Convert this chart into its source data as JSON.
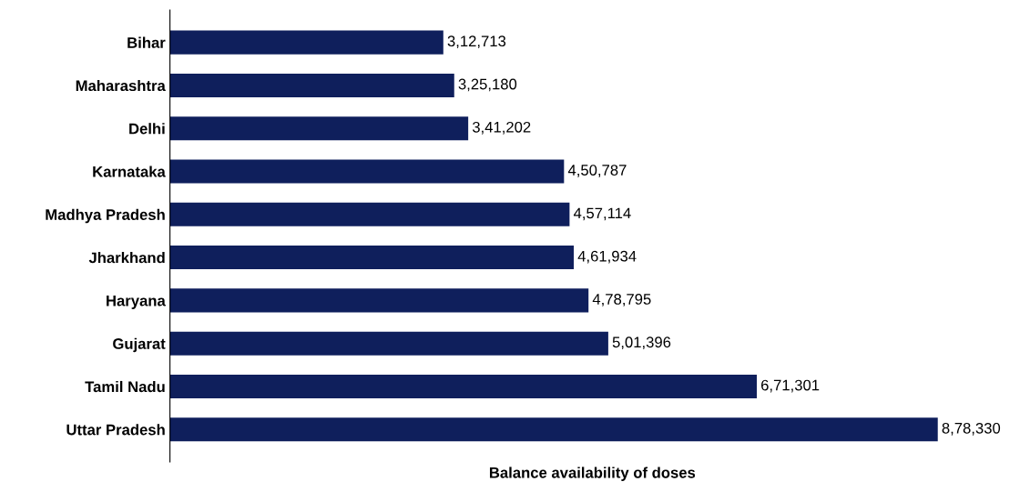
{
  "chart_data": {
    "type": "bar",
    "orientation": "horizontal",
    "xlabel": "Balance availability of doses",
    "categories": [
      "Bihar",
      "Maharashtra",
      "Delhi",
      "Karnataka",
      "Madhya Pradesh",
      "Jharkhand",
      "Haryana",
      "Gujarat",
      "Tamil Nadu",
      "Uttar Pradesh"
    ],
    "values": [
      312713,
      325180,
      341202,
      450787,
      457114,
      461934,
      478795,
      501396,
      671301,
      878330
    ],
    "value_labels": [
      "3,12,713",
      "3,25,180",
      "3,41,202",
      "4,50,787",
      "4,57,114",
      "4,61,934",
      "4,78,795",
      "5,01,396",
      "6,71,301",
      "8,78,330"
    ],
    "color": "#0f1f5c",
    "tick_labels": "y",
    "grid": false,
    "legend": false
  }
}
